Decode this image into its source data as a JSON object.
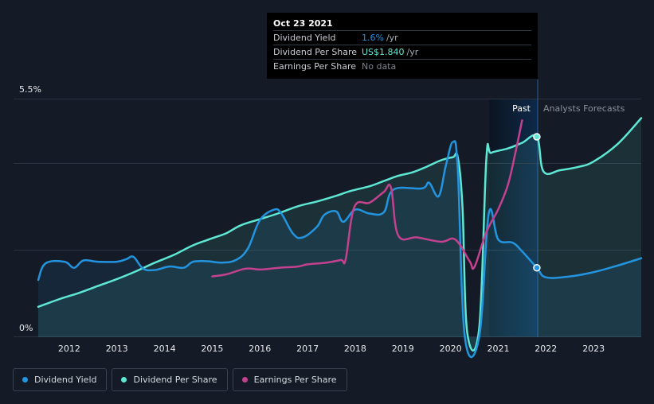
{
  "colors": {
    "background": "#151b26",
    "dividend_yield": "#2394df",
    "dividend_per_share": "#5ee7d4",
    "earnings_per_share": "#c3418e",
    "grid": "#2c3340",
    "forecast_band": "#0e2a4c"
  },
  "tooltip": {
    "date": "Oct 23 2021",
    "rows": [
      {
        "label": "Dividend Yield",
        "value": "1.6%",
        "unit": "/yr",
        "color": "#2394df"
      },
      {
        "label": "Dividend Per Share",
        "value": "US$1.840",
        "unit": "/yr",
        "color": "#5ee7d4"
      },
      {
        "label": "Earnings Per Share",
        "value": "No data",
        "unit": "",
        "color": "#7d828b"
      }
    ]
  },
  "regions": {
    "past_label": "Past",
    "forecast_label": "Analysts Forecasts",
    "split_x": 2021.81
  },
  "legend": [
    {
      "label": "Dividend Yield",
      "color": "#2394df"
    },
    {
      "label": "Dividend Per Share",
      "color": "#5ee7d4"
    },
    {
      "label": "Earnings Per Share",
      "color": "#c3418e"
    }
  ],
  "chart_data": {
    "type": "line",
    "y_tick_labels": [
      "5.5%",
      "0%"
    ],
    "ylim": [
      0,
      5.5
    ],
    "xlim": [
      2011.35,
      2024.0
    ],
    "x_ticks": [
      2012,
      2013,
      2014,
      2015,
      2016,
      2017,
      2018,
      2019,
      2020,
      2021,
      2022,
      2023
    ],
    "x_tick_labels": [
      "2012",
      "2013",
      "2014",
      "2015",
      "2016",
      "2017",
      "2018",
      "2019",
      "2020",
      "2021",
      "2022",
      "2023"
    ],
    "grid": "horizontal",
    "legend_position": "bottom-left",
    "series": [
      {
        "name": "Dividend Yield",
        "area": true,
        "points": [
          [
            2011.35,
            1.32
          ],
          [
            2011.5,
            1.7
          ],
          [
            2011.9,
            1.74
          ],
          [
            2012.1,
            1.6
          ],
          [
            2012.3,
            1.77
          ],
          [
            2012.6,
            1.74
          ],
          [
            2013.0,
            1.74
          ],
          [
            2013.2,
            1.8
          ],
          [
            2013.35,
            1.85
          ],
          [
            2013.55,
            1.58
          ],
          [
            2013.8,
            1.55
          ],
          [
            2014.1,
            1.63
          ],
          [
            2014.4,
            1.6
          ],
          [
            2014.6,
            1.74
          ],
          [
            2014.9,
            1.75
          ],
          [
            2015.2,
            1.72
          ],
          [
            2015.5,
            1.78
          ],
          [
            2015.75,
            2.05
          ],
          [
            2016.0,
            2.7
          ],
          [
            2016.3,
            2.94
          ],
          [
            2016.45,
            2.85
          ],
          [
            2016.7,
            2.38
          ],
          [
            2016.9,
            2.3
          ],
          [
            2017.2,
            2.55
          ],
          [
            2017.35,
            2.82
          ],
          [
            2017.6,
            2.9
          ],
          [
            2017.75,
            2.66
          ],
          [
            2018.0,
            2.94
          ],
          [
            2018.3,
            2.85
          ],
          [
            2018.6,
            2.88
          ],
          [
            2018.8,
            3.4
          ],
          [
            2019.4,
            3.43
          ],
          [
            2019.55,
            3.56
          ],
          [
            2019.75,
            3.25
          ],
          [
            2019.9,
            3.95
          ],
          [
            2020.05,
            4.5
          ],
          [
            2020.15,
            3.9
          ],
          [
            2020.3,
            0.0
          ],
          [
            2020.6,
            0.0
          ],
          [
            2020.8,
            2.85
          ],
          [
            2021.0,
            2.25
          ],
          [
            2021.3,
            2.18
          ],
          [
            2021.5,
            1.98
          ],
          [
            2021.81,
            1.6
          ],
          [
            2022.0,
            1.38
          ],
          [
            2022.5,
            1.4
          ],
          [
            2023.0,
            1.5
          ],
          [
            2023.5,
            1.65
          ],
          [
            2024.0,
            1.82
          ]
        ]
      },
      {
        "name": "Dividend Per Share",
        "area": true,
        "points": [
          [
            2011.35,
            0.7
          ],
          [
            2011.8,
            0.88
          ],
          [
            2012.2,
            1.02
          ],
          [
            2012.6,
            1.18
          ],
          [
            2013.0,
            1.34
          ],
          [
            2013.4,
            1.52
          ],
          [
            2013.8,
            1.72
          ],
          [
            2014.2,
            1.9
          ],
          [
            2014.6,
            2.12
          ],
          [
            2015.0,
            2.28
          ],
          [
            2015.3,
            2.4
          ],
          [
            2015.6,
            2.58
          ],
          [
            2016.0,
            2.72
          ],
          [
            2016.4,
            2.86
          ],
          [
            2016.8,
            3.02
          ],
          [
            2017.2,
            3.13
          ],
          [
            2017.6,
            3.26
          ],
          [
            2017.9,
            3.37
          ],
          [
            2018.3,
            3.48
          ],
          [
            2018.6,
            3.6
          ],
          [
            2018.9,
            3.72
          ],
          [
            2019.2,
            3.8
          ],
          [
            2019.5,
            3.93
          ],
          [
            2019.8,
            4.08
          ],
          [
            2020.05,
            4.15
          ],
          [
            2020.15,
            4.15
          ],
          [
            2020.25,
            3.0
          ],
          [
            2020.35,
            0.1
          ],
          [
            2020.6,
            0.2
          ],
          [
            2020.75,
            4.1
          ],
          [
            2020.85,
            4.25
          ],
          [
            2021.2,
            4.35
          ],
          [
            2021.5,
            4.48
          ],
          [
            2021.81,
            4.62
          ],
          [
            2021.95,
            3.82
          ],
          [
            2022.3,
            3.85
          ],
          [
            2022.7,
            3.93
          ],
          [
            2023.0,
            4.05
          ],
          [
            2023.5,
            4.45
          ],
          [
            2024.0,
            5.05
          ]
        ]
      },
      {
        "name": "Earnings Per Share",
        "area": false,
        "points": [
          [
            2015.0,
            1.4
          ],
          [
            2015.3,
            1.45
          ],
          [
            2015.7,
            1.58
          ],
          [
            2016.0,
            1.56
          ],
          [
            2016.4,
            1.6
          ],
          [
            2016.8,
            1.63
          ],
          [
            2017.0,
            1.68
          ],
          [
            2017.4,
            1.72
          ],
          [
            2017.7,
            1.78
          ],
          [
            2017.8,
            1.8
          ],
          [
            2017.98,
            3.0
          ],
          [
            2018.3,
            3.1
          ],
          [
            2018.6,
            3.35
          ],
          [
            2018.75,
            3.45
          ],
          [
            2018.9,
            2.35
          ],
          [
            2019.3,
            2.3
          ],
          [
            2019.8,
            2.2
          ],
          [
            2020.1,
            2.25
          ],
          [
            2020.4,
            1.75
          ],
          [
            2020.5,
            1.62
          ],
          [
            2020.75,
            2.42
          ],
          [
            2021.0,
            2.95
          ],
          [
            2021.2,
            3.5
          ],
          [
            2021.35,
            4.2
          ],
          [
            2021.5,
            5.0
          ]
        ]
      }
    ]
  }
}
